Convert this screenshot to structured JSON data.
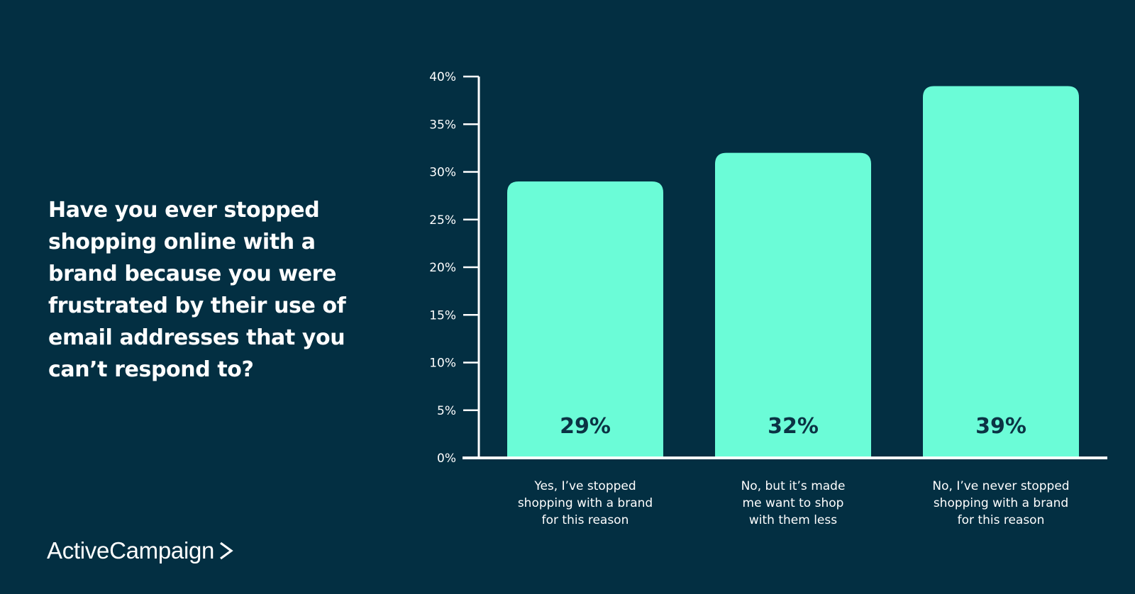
{
  "question": "Have you ever stopped shopping online with a brand because you were frustrated by their use of email addresses that you can’t respond to?",
  "brand": {
    "name": "ActiveCampaign",
    "mark": "chevron-right-icon"
  },
  "colors": {
    "background": "#032f42",
    "bar": "#6bfcd7",
    "axis": "#ffffff",
    "value_text": "#0b3344"
  },
  "chart_data": {
    "type": "bar",
    "categories": [
      [
        "Yes, I’ve stopped",
        "shopping with a brand",
        "for this reason"
      ],
      [
        "No, but it’s made",
        "me want to shop",
        "with them less"
      ],
      [
        "No, I’ve never stopped",
        "shopping with a brand",
        "for this reason"
      ]
    ],
    "values": [
      29,
      32,
      39
    ],
    "value_labels": [
      "29%",
      "32%",
      "39%"
    ],
    "yticks": [
      0,
      5,
      10,
      15,
      20,
      25,
      30,
      35,
      40
    ],
    "ytick_labels": [
      "0%",
      "5%",
      "10%",
      "15%",
      "20%",
      "25%",
      "30%",
      "35%",
      "40%"
    ],
    "ylim": [
      0,
      40
    ],
    "grid": false,
    "legend": "none"
  }
}
